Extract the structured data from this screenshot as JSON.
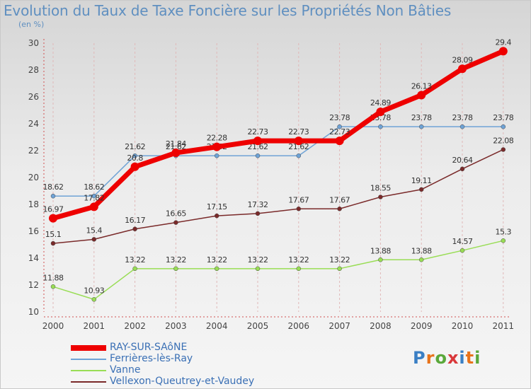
{
  "chart_data": {
    "type": "line",
    "title": "Evolution du Taux de Taxe Foncière sur les Propriétés Non Bâties",
    "subtitle": "(en %)",
    "x": [
      "2000",
      "2001",
      "2002",
      "2003",
      "2004",
      "2005",
      "2006",
      "2007",
      "2008",
      "2009",
      "2010",
      "2011"
    ],
    "ylim": [
      10,
      30
    ],
    "yticks": [
      10,
      12,
      14,
      16,
      18,
      20,
      22,
      24,
      26,
      28,
      30
    ],
    "grid": "vertical dashed",
    "legend_position": "bottom-left",
    "series": [
      {
        "name": "RAY-SUR-SAôNE",
        "color": "#ee0000",
        "values": [
          16.97,
          17.82,
          20.8,
          21.84,
          22.28,
          22.73,
          22.73,
          22.73,
          24.89,
          26.13,
          28.09,
          29.4
        ],
        "labels": [
          "16.97",
          "17.82",
          "20.8",
          "21.84",
          "22.28",
          "22.73",
          "22.73",
          "22.73",
          "24.89",
          "26.13",
          "28.09",
          "29.4"
        ]
      },
      {
        "name": "Ferrières-lès-Ray",
        "color": "#6fa3d6",
        "values": [
          18.62,
          18.62,
          21.62,
          21.62,
          21.62,
          21.62,
          21.62,
          23.78,
          23.78,
          23.78,
          23.78,
          23.78
        ],
        "labels": [
          "18.62",
          "18.62",
          "21.62",
          "21.62",
          "21.62",
          "21.62",
          "21.62",
          "23.78",
          "23.78",
          "23.78",
          "23.78",
          "23.78"
        ]
      },
      {
        "name": "Vanne",
        "color": "#99dd55",
        "values": [
          11.88,
          10.93,
          13.22,
          13.22,
          13.22,
          13.22,
          13.22,
          13.22,
          13.88,
          13.88,
          14.57,
          15.3
        ],
        "labels": [
          "11.88",
          "10.93",
          "13.22",
          "13.22",
          "13.22",
          "13.22",
          "13.22",
          "13.22",
          "13.88",
          "13.88",
          "14.57",
          "15.3"
        ]
      },
      {
        "name": "Vellexon-Queutrey-et-Vaudey",
        "color": "#7a2a2a",
        "values": [
          15.1,
          15.4,
          16.17,
          16.65,
          17.15,
          17.32,
          17.67,
          17.67,
          18.55,
          19.11,
          20.64,
          22.08
        ],
        "labels": [
          "15.1",
          "15.4",
          "16.17",
          "16.65",
          "17.15",
          "17.32",
          "17.67",
          "17.67",
          "18.55",
          "19.11",
          "20.64",
          "22.08"
        ]
      }
    ]
  },
  "logo": {
    "text": "Proxiti"
  }
}
